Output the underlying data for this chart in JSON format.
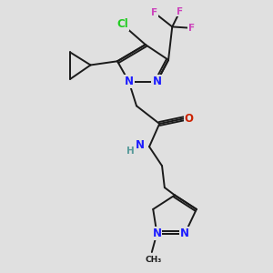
{
  "bg_color": "#e0e0e0",
  "bond_color": "#1a1a1a",
  "bond_width": 1.4,
  "atom_colors": {
    "N": "#1c1cff",
    "O": "#cc2200",
    "Cl": "#22cc22",
    "F": "#cc44bb",
    "H": "#559999",
    "C": "#1a1a1a"
  },
  "figsize": [
    3.0,
    3.0
  ],
  "dpi": 100,
  "xlim": [
    0,
    10
  ],
  "ylim": [
    0,
    10.5
  ],
  "font_size": 8.5,
  "font_size_small": 7.5
}
